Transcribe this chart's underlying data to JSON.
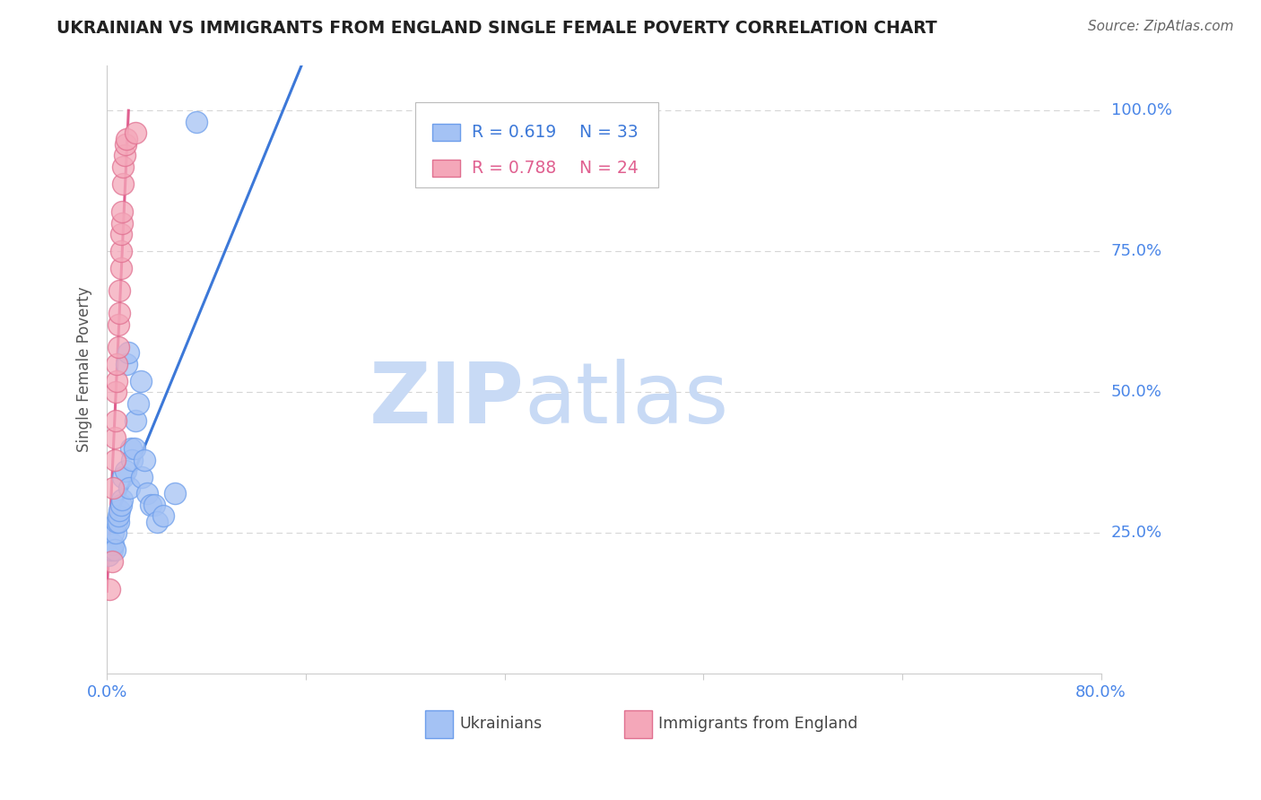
{
  "title": "UKRAINIAN VS IMMIGRANTS FROM ENGLAND SINGLE FEMALE POVERTY CORRELATION CHART",
  "source": "Source: ZipAtlas.com",
  "ylabel": "Single Female Poverty",
  "legend_r1": "R = 0.619",
  "legend_n1": "N = 33",
  "legend_r2": "R = 0.788",
  "legend_n2": "N = 24",
  "watermark_zip": "ZIP",
  "watermark_atlas": "atlas",
  "blue_scatter_color": "#a4c2f4",
  "pink_scatter_color": "#f4a7b9",
  "blue_line_color": "#3c78d8",
  "pink_line_color": "#e06090",
  "blue_edge_color": "#6d9eeb",
  "pink_edge_color": "#e07090",
  "title_color": "#212121",
  "axis_color": "#4a86e8",
  "grid_color": "#cccccc",
  "background_color": "#ffffff",
  "ukrainians_x": [
    0.001,
    0.003,
    0.004,
    0.005,
    0.005,
    0.006,
    0.007,
    0.008,
    0.009,
    0.009,
    0.01,
    0.011,
    0.012,
    0.013,
    0.015,
    0.016,
    0.017,
    0.018,
    0.019,
    0.02,
    0.022,
    0.023,
    0.025,
    0.027,
    0.028,
    0.03,
    0.032,
    0.035,
    0.038,
    0.04,
    0.045,
    0.055,
    0.072
  ],
  "ukrainians_y": [
    0.21,
    0.22,
    0.22,
    0.23,
    0.25,
    0.22,
    0.25,
    0.27,
    0.27,
    0.28,
    0.29,
    0.3,
    0.31,
    0.35,
    0.36,
    0.55,
    0.57,
    0.33,
    0.4,
    0.38,
    0.4,
    0.45,
    0.48,
    0.52,
    0.35,
    0.38,
    0.32,
    0.3,
    0.3,
    0.27,
    0.28,
    0.32,
    0.98
  ],
  "england_x": [
    0.002,
    0.004,
    0.005,
    0.006,
    0.006,
    0.007,
    0.007,
    0.008,
    0.008,
    0.009,
    0.009,
    0.01,
    0.01,
    0.011,
    0.011,
    0.011,
    0.012,
    0.012,
    0.013,
    0.013,
    0.014,
    0.015,
    0.016,
    0.023
  ],
  "england_y": [
    0.15,
    0.2,
    0.33,
    0.38,
    0.42,
    0.45,
    0.5,
    0.52,
    0.55,
    0.58,
    0.62,
    0.64,
    0.68,
    0.72,
    0.75,
    0.78,
    0.8,
    0.82,
    0.87,
    0.9,
    0.92,
    0.94,
    0.95,
    0.96
  ],
  "xmin": 0.0,
  "xmax": 0.8,
  "ymin": 0.0,
  "ymax": 1.08,
  "yticks": [
    0.25,
    0.5,
    0.75,
    1.0
  ],
  "ytick_labels": [
    "25.0%",
    "50.0%",
    "75.0%",
    "100.0%"
  ],
  "xtick_positions": [
    0.0,
    0.16,
    0.32,
    0.48,
    0.64,
    0.8
  ],
  "xtick_labels": [
    "0.0%",
    "",
    "",
    "",
    "",
    "80.0%"
  ]
}
